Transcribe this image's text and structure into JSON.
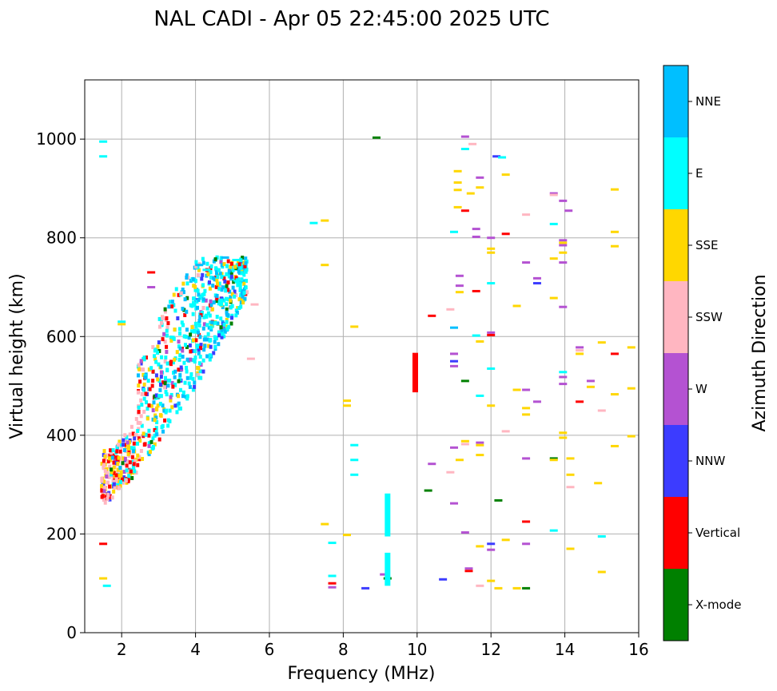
{
  "chart_data": {
    "type": "scatter",
    "title": "NAL CADI - Apr 05 22:45:00 2025 UTC",
    "xlabel": "Frequency (MHz)",
    "ylabel": "Virtual height (km)",
    "xlim": [
      1,
      16
    ],
    "ylim": [
      0,
      1120
    ],
    "xticks": [
      2,
      4,
      6,
      8,
      10,
      12,
      14,
      16
    ],
    "yticks": [
      0,
      200,
      400,
      600,
      800,
      1000
    ],
    "grid": true,
    "colorbar": {
      "title": "Azimuth Direction",
      "categories": [
        {
          "label": "X-mode",
          "color": "#008000"
        },
        {
          "label": "Vertical",
          "color": "#ff0000"
        },
        {
          "label": "NNW",
          "color": "#3c3cff"
        },
        {
          "label": "W",
          "color": "#b452d2"
        },
        {
          "label": "SSW",
          "color": "#ffb6c1"
        },
        {
          "label": "SSE",
          "color": "#ffd700"
        },
        {
          "label": "E",
          "color": "#00ffff"
        },
        {
          "label": "NNE",
          "color": "#00bfff"
        }
      ]
    },
    "segments": [
      {
        "f": 1.5,
        "h": 995,
        "c": 6
      },
      {
        "f": 1.5,
        "h": 965,
        "c": 6
      },
      {
        "f": 1.5,
        "h": 180,
        "c": 1
      },
      {
        "f": 1.5,
        "h": 110,
        "c": 5
      },
      {
        "f": 1.6,
        "h": 95,
        "c": 6
      },
      {
        "f": 2.0,
        "h": 630,
        "c": 6
      },
      {
        "f": 2.0,
        "h": 625,
        "c": 5
      },
      {
        "f": 2.8,
        "h": 730,
        "c": 1
      },
      {
        "f": 2.8,
        "h": 700,
        "c": 3
      },
      {
        "f": 4.1,
        "h": 745,
        "c": 7
      },
      {
        "f": 4.3,
        "h": 735,
        "c": 6
      },
      {
        "f": 4.8,
        "h": 760,
        "c": 7
      },
      {
        "f": 5.1,
        "h": 755,
        "c": 6
      },
      {
        "f": 5.6,
        "h": 665,
        "c": 4
      },
      {
        "f": 5.5,
        "h": 555,
        "c": 4
      },
      {
        "f": 7.2,
        "h": 830,
        "c": 6
      },
      {
        "f": 7.5,
        "h": 835,
        "c": 5
      },
      {
        "f": 7.5,
        "h": 745,
        "c": 5
      },
      {
        "f": 8.3,
        "h": 620,
        "c": 5
      },
      {
        "f": 8.1,
        "h": 470,
        "c": 5
      },
      {
        "f": 8.1,
        "h": 460,
        "c": 5
      },
      {
        "f": 8.3,
        "h": 380,
        "c": 6
      },
      {
        "f": 8.3,
        "h": 350,
        "c": 6
      },
      {
        "f": 8.3,
        "h": 320,
        "c": 6
      },
      {
        "f": 7.5,
        "h": 220,
        "c": 5
      },
      {
        "f": 8.1,
        "h": 198,
        "c": 5
      },
      {
        "f": 7.7,
        "h": 182,
        "c": 6
      },
      {
        "f": 7.7,
        "h": 115,
        "c": 6
      },
      {
        "f": 7.7,
        "h": 100,
        "c": 1
      },
      {
        "f": 7.7,
        "h": 92,
        "c": 3
      },
      {
        "f": 8.6,
        "h": 90,
        "c": 2
      },
      {
        "f": 8.9,
        "h": 1003,
        "c": 0
      },
      {
        "f": 9.1,
        "h": 118,
        "c": 3
      },
      {
        "f": 9.2,
        "h": 110,
        "c": 0
      },
      {
        "f": 10.3,
        "h": 288,
        "c": 0
      },
      {
        "f": 10.4,
        "h": 342,
        "c": 3
      },
      {
        "f": 10.4,
        "h": 642,
        "c": 1
      },
      {
        "f": 10.7,
        "h": 108,
        "c": 2
      },
      {
        "f": 10.9,
        "h": 655,
        "c": 4
      },
      {
        "f": 10.9,
        "h": 325,
        "c": 4
      },
      {
        "f": 11.0,
        "h": 812,
        "c": 6
      },
      {
        "f": 11.0,
        "h": 618,
        "c": 7
      },
      {
        "f": 11.0,
        "h": 565,
        "c": 3
      },
      {
        "f": 11.0,
        "h": 550,
        "c": 2
      },
      {
        "f": 11.0,
        "h": 540,
        "c": 3
      },
      {
        "f": 11.0,
        "h": 375,
        "c": 3
      },
      {
        "f": 11.0,
        "h": 262,
        "c": 3
      },
      {
        "f": 11.1,
        "h": 935,
        "c": 5
      },
      {
        "f": 11.1,
        "h": 912,
        "c": 5
      },
      {
        "f": 11.1,
        "h": 897,
        "c": 5
      },
      {
        "f": 11.1,
        "h": 862,
        "c": 5
      },
      {
        "f": 11.15,
        "h": 723,
        "c": 3
      },
      {
        "f": 11.15,
        "h": 703,
        "c": 3
      },
      {
        "f": 11.15,
        "h": 690,
        "c": 5
      },
      {
        "f": 11.15,
        "h": 350,
        "c": 5
      },
      {
        "f": 11.3,
        "h": 1005,
        "c": 3
      },
      {
        "f": 11.3,
        "h": 980,
        "c": 6
      },
      {
        "f": 11.3,
        "h": 855,
        "c": 1
      },
      {
        "f": 11.3,
        "h": 510,
        "c": 0
      },
      {
        "f": 11.3,
        "h": 388,
        "c": 5
      },
      {
        "f": 11.3,
        "h": 382,
        "c": 4
      },
      {
        "f": 11.3,
        "h": 203,
        "c": 3
      },
      {
        "f": 11.45,
        "h": 890,
        "c": 5
      },
      {
        "f": 11.4,
        "h": 130,
        "c": 3
      },
      {
        "f": 11.4,
        "h": 125,
        "c": 1
      },
      {
        "f": 11.5,
        "h": 990,
        "c": 4
      },
      {
        "f": 11.6,
        "h": 818,
        "c": 3
      },
      {
        "f": 11.6,
        "h": 802,
        "c": 3
      },
      {
        "f": 11.6,
        "h": 692,
        "c": 1
      },
      {
        "f": 11.6,
        "h": 602,
        "c": 6
      },
      {
        "f": 11.7,
        "h": 922,
        "c": 3
      },
      {
        "f": 11.7,
        "h": 902,
        "c": 5
      },
      {
        "f": 11.7,
        "h": 590,
        "c": 5
      },
      {
        "f": 11.7,
        "h": 480,
        "c": 6
      },
      {
        "f": 11.7,
        "h": 385,
        "c": 3
      },
      {
        "f": 11.7,
        "h": 380,
        "c": 5
      },
      {
        "f": 11.7,
        "h": 360,
        "c": 5
      },
      {
        "f": 11.7,
        "h": 175,
        "c": 5
      },
      {
        "f": 11.7,
        "h": 95,
        "c": 4
      },
      {
        "f": 12.0,
        "h": 800,
        "c": 3
      },
      {
        "f": 12.0,
        "h": 778,
        "c": 5
      },
      {
        "f": 12.0,
        "h": 770,
        "c": 5
      },
      {
        "f": 12.0,
        "h": 708,
        "c": 6
      },
      {
        "f": 12.0,
        "h": 608,
        "c": 3
      },
      {
        "f": 12.0,
        "h": 603,
        "c": 1
      },
      {
        "f": 12.0,
        "h": 535,
        "c": 6
      },
      {
        "f": 12.0,
        "h": 460,
        "c": 5
      },
      {
        "f": 12.0,
        "h": 180,
        "c": 2
      },
      {
        "f": 12.0,
        "h": 168,
        "c": 3
      },
      {
        "f": 12.0,
        "h": 105,
        "c": 5
      },
      {
        "f": 12.15,
        "h": 965,
        "c": 2
      },
      {
        "f": 12.3,
        "h": 963,
        "c": 6
      },
      {
        "f": 12.4,
        "h": 928,
        "c": 5
      },
      {
        "f": 12.4,
        "h": 808,
        "c": 1
      },
      {
        "f": 12.4,
        "h": 408,
        "c": 4
      },
      {
        "f": 12.4,
        "h": 188,
        "c": 5
      },
      {
        "f": 12.2,
        "h": 268,
        "c": 0
      },
      {
        "f": 12.2,
        "h": 90,
        "c": 5
      },
      {
        "f": 12.7,
        "h": 662,
        "c": 5
      },
      {
        "f": 12.7,
        "h": 492,
        "c": 5
      },
      {
        "f": 12.7,
        "h": 90,
        "c": 5
      },
      {
        "f": 12.95,
        "h": 847,
        "c": 4
      },
      {
        "f": 12.95,
        "h": 750,
        "c": 3
      },
      {
        "f": 12.95,
        "h": 492,
        "c": 3
      },
      {
        "f": 12.95,
        "h": 455,
        "c": 5
      },
      {
        "f": 12.95,
        "h": 442,
        "c": 5
      },
      {
        "f": 12.95,
        "h": 353,
        "c": 3
      },
      {
        "f": 12.95,
        "h": 225,
        "c": 1
      },
      {
        "f": 12.95,
        "h": 180,
        "c": 3
      },
      {
        "f": 12.95,
        "h": 90,
        "c": 0
      },
      {
        "f": 13.25,
        "h": 718,
        "c": 3
      },
      {
        "f": 13.25,
        "h": 708,
        "c": 2
      },
      {
        "f": 13.25,
        "h": 468,
        "c": 3
      },
      {
        "f": 13.7,
        "h": 890,
        "c": 3
      },
      {
        "f": 13.7,
        "h": 887,
        "c": 4
      },
      {
        "f": 13.7,
        "h": 828,
        "c": 6
      },
      {
        "f": 13.7,
        "h": 758,
        "c": 5
      },
      {
        "f": 13.7,
        "h": 678,
        "c": 5
      },
      {
        "f": 13.7,
        "h": 353,
        "c": 0
      },
      {
        "f": 13.7,
        "h": 350,
        "c": 5
      },
      {
        "f": 13.7,
        "h": 207,
        "c": 6
      },
      {
        "f": 13.95,
        "h": 875,
        "c": 3
      },
      {
        "f": 13.95,
        "h": 795,
        "c": 3
      },
      {
        "f": 13.95,
        "h": 790,
        "c": 5
      },
      {
        "f": 13.95,
        "h": 785,
        "c": 3
      },
      {
        "f": 13.95,
        "h": 770,
        "c": 5
      },
      {
        "f": 13.95,
        "h": 750,
        "c": 3
      },
      {
        "f": 13.95,
        "h": 660,
        "c": 3
      },
      {
        "f": 13.95,
        "h": 528,
        "c": 6
      },
      {
        "f": 13.95,
        "h": 518,
        "c": 3
      },
      {
        "f": 13.95,
        "h": 504,
        "c": 3
      },
      {
        "f": 13.95,
        "h": 405,
        "c": 5
      },
      {
        "f": 13.95,
        "h": 395,
        "c": 5
      },
      {
        "f": 14.1,
        "h": 855,
        "c": 3
      },
      {
        "f": 14.15,
        "h": 353,
        "c": 5
      },
      {
        "f": 14.15,
        "h": 320,
        "c": 5
      },
      {
        "f": 14.15,
        "h": 295,
        "c": 4
      },
      {
        "f": 14.15,
        "h": 170,
        "c": 5
      },
      {
        "f": 14.4,
        "h": 578,
        "c": 3
      },
      {
        "f": 14.4,
        "h": 572,
        "c": 4
      },
      {
        "f": 14.4,
        "h": 565,
        "c": 5
      },
      {
        "f": 14.4,
        "h": 468,
        "c": 1
      },
      {
        "f": 14.7,
        "h": 510,
        "c": 3
      },
      {
        "f": 14.7,
        "h": 498,
        "c": 5
      },
      {
        "f": 15.0,
        "h": 588,
        "c": 5
      },
      {
        "f": 15.0,
        "h": 450,
        "c": 4
      },
      {
        "f": 15.0,
        "h": 195,
        "c": 6
      },
      {
        "f": 15.0,
        "h": 123,
        "c": 5
      },
      {
        "f": 14.9,
        "h": 303,
        "c": 5
      },
      {
        "f": 15.35,
        "h": 898,
        "c": 5
      },
      {
        "f": 15.35,
        "h": 812,
        "c": 5
      },
      {
        "f": 15.35,
        "h": 783,
        "c": 5
      },
      {
        "f": 15.35,
        "h": 565,
        "c": 1
      },
      {
        "f": 15.35,
        "h": 483,
        "c": 5
      },
      {
        "f": 15.35,
        "h": 378,
        "c": 5
      },
      {
        "f": 15.8,
        "h": 578,
        "c": 5
      },
      {
        "f": 15.8,
        "h": 495,
        "c": 5
      },
      {
        "f": 15.8,
        "h": 398,
        "c": 5
      }
    ],
    "columns": [
      {
        "f": 9.2,
        "h0": 195,
        "h1": 282,
        "c": 6
      },
      {
        "f": 9.2,
        "h0": 95,
        "h1": 162,
        "c": 6
      },
      {
        "f": 9.95,
        "h0": 487,
        "h1": 567,
        "c": 1
      }
    ]
  }
}
